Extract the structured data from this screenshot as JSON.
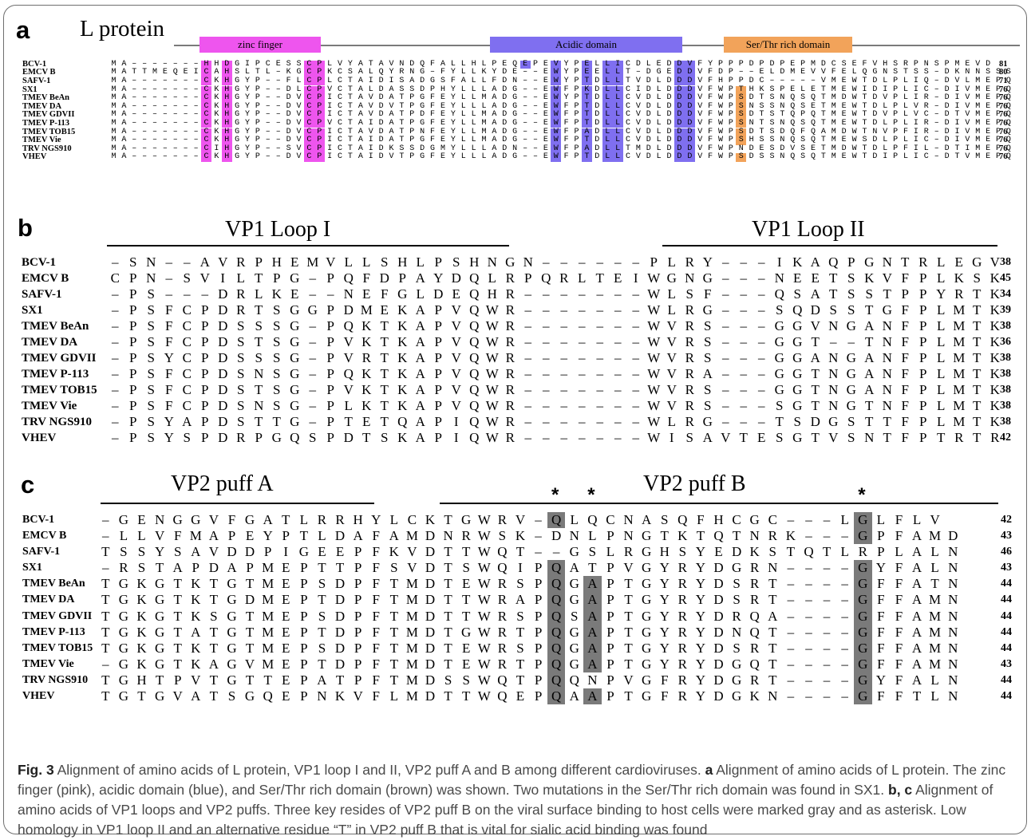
{
  "panel_a": {
    "letter": "a",
    "title": "L protein",
    "domains": [
      {
        "label": "zinc finger",
        "color": "#ee55ee"
      },
      {
        "label": "Acidic domain",
        "color": "#7f6ff0"
      },
      {
        "label": "Ser/Thr rich domain",
        "color": "#f2a35a"
      }
    ],
    "names": [
      "BCV-1",
      "EMCV B",
      "SAFV-1",
      "SX1",
      "TMEV BeAn",
      "TMEV DA",
      "TMEV GDVII",
      "TMEV P-113",
      "TMEV TOB15",
      "TMEV Vie",
      "TRV NGS910",
      "VHEV"
    ],
    "seqs": [
      "MA-------HHDGIPCESSCPLVYATAVNDQFALLHLPEQEPEVYPELLICDLEDDVFYPPPDPDPEPMDCSEFVHSRPNSPMEVD",
      "MATTMEQEICAHSLTL-KGCPKCSALQYRNG-FYLLKYDE--EWYPEELLT-DGEDDVFDP--ELDMEVVFELQGNSTSS-DKNNSSS",
      "MA-------CKHGYP--FLCPLCTAIDISADGSFALLFDN--EWYPTDLLTVDLDDDVFHPPDC-----VMEWTDLPLIQ-DVLMEPQ",
      "MA-------CKHGYP--DLCPVCTALDASSDPHYLLLADG--EWFPKDLLCIDLDDDVFWPTHKSPELETMEWIDIPLIC-DIVMEPQ",
      "MA-------CKHGYP--DVCPICTAVDATPGFEYLLMADG--EWYPTDLLCVDLDDDVFWPSDTSNQSQTMDWTDVPLIR-DIVMEPQ",
      "MA-------CKHGYP--DVCPICTAVDVTPGFEYLLLADG--EWFPTDLLCVDLDDDVFWPSNSSNQSETMEWTDLPLVR-DIVMEPQ",
      "MA-------CKHGYP--DVCPICTAVDATPDFEYLLMADG--EWFPTDLLCVDLDDDVFWPSDTSTQPQTMEWTDVPLVC-DTVMEPQ",
      "MA-------CKHGYP--DVCPVCTAIDATPGFEYLLMADG--EWFPTDLLCVDLDDDVFWPSNTSNQSQTMEWTDLPLIR-DIVMEPQ",
      "MA-------CKHGYP--DVCPICTAVDATPNFEYLLMADG--EWFPADLLCVDLDDDVFWPSDTSDQFQAMDWTNVPFIR-DIVMEPQ",
      "MA-------CKHGYP--DVCPICTAIDATPGFEYLLMADG--EWFPTDLLCVDLDDDVFWPSHSSNQSQTMEWSDLPLIC-DIVMEPQ",
      "MA-------CIHGYP--SVCPICTAIDKSSDGMYLLLADN--EWFPADLLTMDLDDDVFWPNDESDVSETMDWTDLPFIL-DTIMEPQ",
      "MA-------CKHGYP--DVCPICTAIDVTPGFEYLLLADG--EWFPTDLLCVDLDDDVFWPSDSSNQSQTMEWTDIPLIC-DTVMEPQ"
    ],
    "lengths": [
      "81",
      "80",
      "71",
      "76",
      "76",
      "76",
      "76",
      "76",
      "76",
      "76",
      "76",
      "76"
    ]
  },
  "panel_b": {
    "letter": "b",
    "region_labels": [
      "VP1 Loop I",
      "VP1 Loop II"
    ],
    "names": [
      "BCV-1",
      "EMCV B",
      "SAFV-1",
      "SX1",
      "TMEV BeAn",
      "TMEV DA",
      "TMEV GDVII",
      "TMEV P-113",
      "TMEV TOB15",
      "TMEV Vie",
      "TRV NGS910",
      "VHEV"
    ],
    "seqs": [
      "-SN--AVRPHEMVLLSHLPSHNGN------PLRY---IKAQPGNTRLEGV",
      "CPN-SVILTPG-PQFDPAYDQLRPQRLTEIWGNG---NEETSKVFPLKSK",
      "-PS---DRLKE--NEFGLDEQHR-------WLSF---QSATSSTPPYRTK",
      "-PSFCPDRTSGGPDMEKAPVQWR-------WLRG---SQDSSTGFPLMTK",
      "-PSFCPDSSSG-PQKTKAPVQWR-------WVRS---GGVNGANFPLMTK",
      "-PSFCPDSTSG-PVKTKAPVQWR-------WVRS---GGT--TNFPLMTK",
      "-PSYCPDSSSG-PVRTKAPVQWR-------WVRS---GGANGANFPLMTK",
      "-PSFCPDSNSG-PQKTKAPVQWR-------WVRA---GGTNGANFPLMTK",
      "-PSFCPDSTSG-PVKTKAPVQWR-------WVRS---GGTNGANFPLMTK",
      "-PSFCPDSNSG-PLKTKAPVQWR-------WVRS---SGTNGTNFPLMTK",
      "-PSYAPDSTTG-PTETQAPIQWR-------WLRG---TSDGSTTFPLMTK",
      "-PSYSPDRPGQSPDTSKAPIQWR-------WISAVTESGTVSNTFPTRTR"
    ],
    "lengths": [
      "38",
      "45",
      "34",
      "39",
      "38",
      "36",
      "38",
      "38",
      "38",
      "38",
      "38",
      "42"
    ]
  },
  "panel_c": {
    "letter": "c",
    "region_labels": [
      "VP2 puff A",
      "VP2 puff B"
    ],
    "star": "*",
    "names": [
      "BCV-1",
      "EMCV B",
      "SAFV-1",
      "SX1",
      "TMEV BeAn",
      "TMEV DA",
      "TMEV GDVII",
      "TMEV P-113",
      "TMEV TOB15",
      "TMEV Vie",
      "TRV NGS910",
      "VHEV"
    ],
    "seqs": [
      "-GENGGVFGATLRRHYLCKTGWRV-QLQCNASQFHCGC---LGLFLV",
      "-LLVFMAPEYPTLDAFAMDNRWSK-DNLPNGTKTQTNRK---GPFAMD",
      "TSSYSAVDDPIGEEPFKVDTTWQT--GSLRGHSYEDKSTQTLRPLALN",
      "-RSTAPDAPMEPTTPFSVDTSWQIPQATPVGYRYDGRN----GYFALN",
      "TGKGTKTGTMEPSDPFTMDTEWRSPQGAPTGYRYDSRT----GFFATN",
      "TGKGTKTGDMEPTDPFTMDTTWRAPQGAPTGYRYDSRT----GFFAMN",
      "TGKGTKSGTMEPSDPFTMDTTWRSPQSAPTGYRYDRQA----GFFAMN",
      "TGKGTATGTMEPTDPFTMDTGWRTPQGAPTGYRYDNQT----GFFAMN",
      "TGKGTKTGTMEPSDPFTMDTEWRSPQGAPTGYRYDSRT----GFFAMN",
      "-GKGTKAGVMEPTDPFTMDTEWRTPQGAPTGYRYDGQT----GFFAMN",
      "TGHTPVTGTTEPATPFTMDSSWQTPQQNPVGFRYDGRT----GYFALN",
      "TGTGVATSGQEPNKVFLMDTTWQEPQAAPTGFRYDGKN----GFFTLN"
    ],
    "lengths": [
      "42",
      "43",
      "46",
      "43",
      "44",
      "44",
      "44",
      "44",
      "44",
      "43",
      "44",
      "44"
    ]
  },
  "caption": {
    "fig_label": "Fig. 3",
    "title": "Alignment of amino acids of L protein, VP1 loop I and II, VP2 puff A and B among different cardioviruses.",
    "a_label": "a",
    "a_text": "Alignment of amino acids of L protein. The zinc finger (pink), acidic domain (blue), and Ser/Thr rich domain (brown) was shown. Two mutations in the Ser/Thr rich domain was found in SX1.",
    "bc_label": "b, c",
    "bc_text": "Alignment of amino acids of VP1 loops and VP2 puffs. Three key resides of VP2 puff B on the viral surface binding to host cells were marked gray and as asterisk. Low homology in VP1 loop II and an alternative residue “T” in VP2 puff B that is vital for sialic acid binding was found"
  },
  "colors": {
    "zinc_finger": "#ee55ee",
    "acidic": "#7f6ff0",
    "ser_thr": "#f2a35a",
    "key_residue": "#7a7a7a"
  }
}
